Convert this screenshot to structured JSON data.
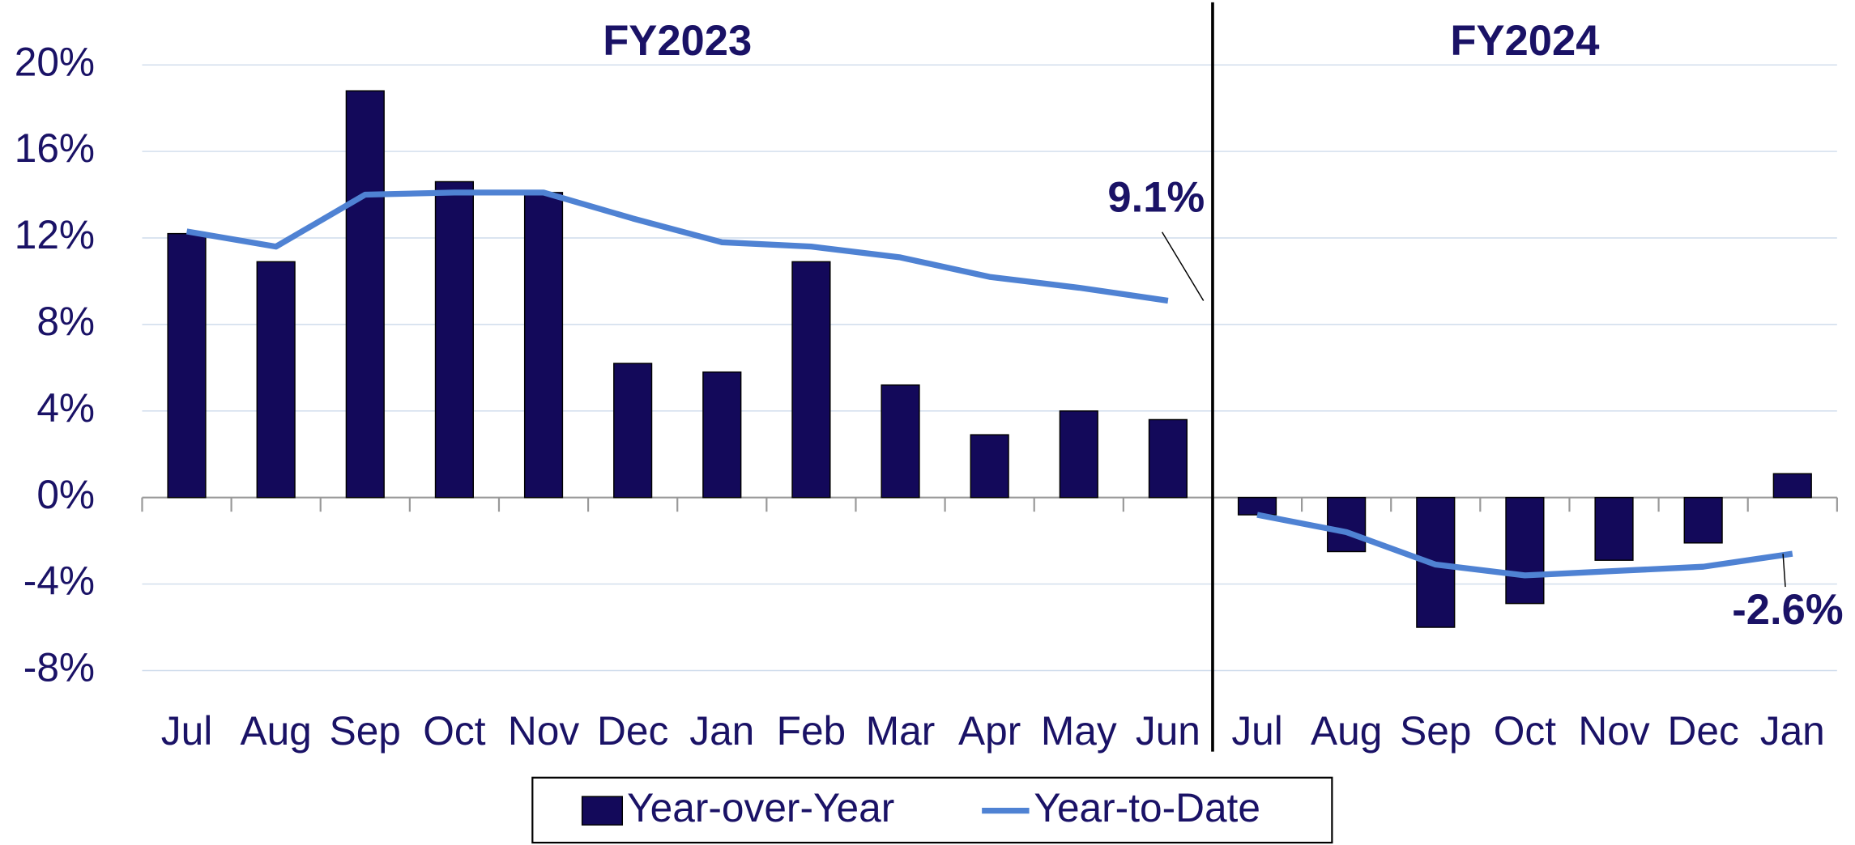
{
  "chart_data": {
    "type": "bar",
    "groups": [
      {
        "label": "FY2023",
        "categories": [
          "Jul",
          "Aug",
          "Sep",
          "Oct",
          "Nov",
          "Dec",
          "Jan",
          "Feb",
          "Mar",
          "Apr",
          "May",
          "Jun"
        ]
      },
      {
        "label": "FY2024",
        "categories": [
          "Jul",
          "Aug",
          "Sep",
          "Oct",
          "Nov",
          "Dec",
          "Jan"
        ]
      }
    ],
    "series": [
      {
        "name": "Year-over-Year",
        "type": "bar",
        "color": "#13095a",
        "values": [
          12.2,
          10.9,
          18.8,
          14.6,
          14.1,
          6.2,
          5.8,
          10.9,
          5.2,
          2.9,
          4.0,
          3.6,
          -0.8,
          -2.5,
          -6.0,
          -4.9,
          -2.9,
          -2.1,
          1.1
        ]
      },
      {
        "name": "Year-to-Date",
        "type": "line",
        "color": "#4f82d3",
        "values": [
          12.3,
          11.6,
          14.0,
          14.1,
          14.1,
          12.9,
          11.8,
          11.6,
          11.1,
          10.2,
          9.7,
          9.1,
          -0.8,
          -1.6,
          -3.1,
          -3.6,
          -3.4,
          -3.2,
          -2.6
        ],
        "value_labels": [
          null,
          null,
          null,
          null,
          null,
          null,
          null,
          null,
          null,
          null,
          null,
          "9.1%",
          null,
          null,
          null,
          null,
          null,
          null,
          "-2.6%"
        ]
      }
    ],
    "ylim": [
      -10,
      23
    ],
    "yticks": [
      {
        "value": -8,
        "label": "-8%"
      },
      {
        "value": -4,
        "label": "-4%"
      },
      {
        "value": 0,
        "label": "0%"
      },
      {
        "value": 4,
        "label": "4%"
      },
      {
        "value": 8,
        "label": "8%"
      },
      {
        "value": 12,
        "label": "12%"
      },
      {
        "value": 16,
        "label": "16%"
      },
      {
        "value": 20,
        "label": "20%"
      }
    ],
    "grid": true,
    "legend": "bottom"
  }
}
